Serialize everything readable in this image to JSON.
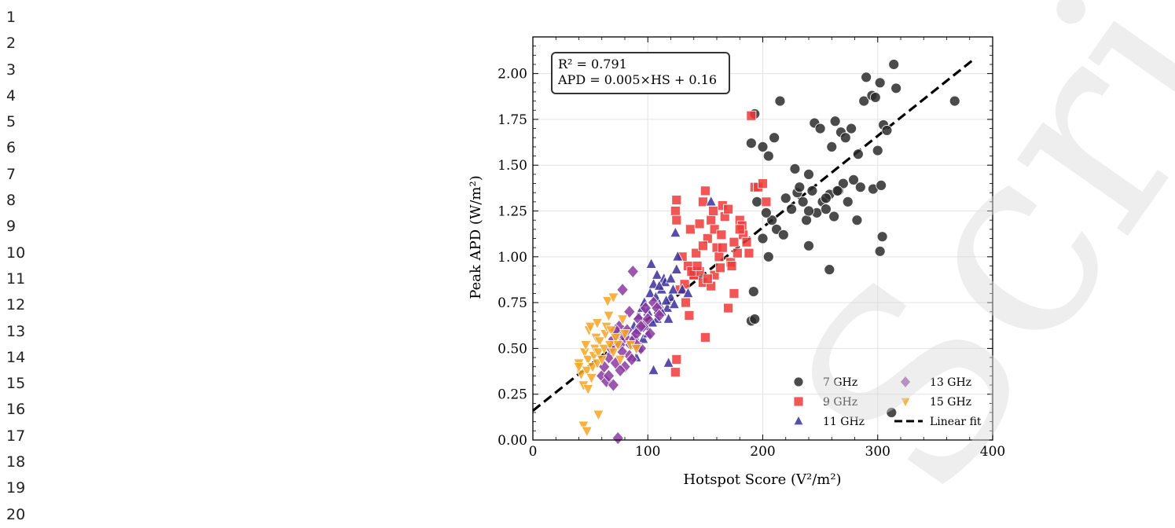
{
  "gutter": {
    "line_numbers": [
      "1",
      "2",
      "3",
      "4",
      "5",
      "6",
      "7",
      "8",
      "9",
      "10",
      "11",
      "12",
      "13",
      "14",
      "15",
      "16",
      "17",
      "18",
      "19",
      "20"
    ]
  },
  "watermark": {
    "text": "Script"
  },
  "chart_data": {
    "type": "scatter",
    "xlabel": "Hotspot Score (V²/m²)",
    "ylabel": "Peak APD (W/m²)",
    "xlim": [
      0,
      400
    ],
    "ylim": [
      0,
      2.2
    ],
    "xticks": [
      0,
      100,
      200,
      300,
      400
    ],
    "yticks": [
      0.0,
      0.25,
      0.5,
      0.75,
      1.0,
      1.25,
      1.5,
      1.75,
      2.0
    ],
    "grid": true,
    "legend_position": "lower-right",
    "annotation": [
      "R² = 0.791",
      "APD = 0.005×HS + 0.16"
    ],
    "fit": {
      "name": "Linear fit",
      "slope": 0.005,
      "intercept": 0.16,
      "x_range": [
        0,
        385
      ],
      "color": "#000000"
    },
    "series": [
      {
        "name": "7 GHz",
        "marker": "circle",
        "color": "#2b2b2b",
        "points": [
          [
            190,
            1.62
          ],
          [
            193,
            1.78
          ],
          [
            200,
            1.6
          ],
          [
            205,
            1.55
          ],
          [
            210,
            1.65
          ],
          [
            215,
            1.85
          ],
          [
            230,
            1.35
          ],
          [
            240,
            1.45
          ],
          [
            245,
            1.73
          ],
          [
            250,
            1.7
          ],
          [
            260,
            1.6
          ],
          [
            263,
            1.74
          ],
          [
            268,
            1.68
          ],
          [
            272,
            1.65
          ],
          [
            277,
            1.7
          ],
          [
            283,
            1.56
          ],
          [
            288,
            1.85
          ],
          [
            290,
            1.98
          ],
          [
            295,
            1.88
          ],
          [
            298,
            1.87
          ],
          [
            302,
            1.95
          ],
          [
            305,
            1.72
          ],
          [
            308,
            1.69
          ],
          [
            314,
            2.05
          ],
          [
            316,
            1.92
          ],
          [
            367,
            1.85
          ],
          [
            200,
            1.1
          ],
          [
            205,
            1.0
          ],
          [
            208,
            1.2
          ],
          [
            212,
            1.15
          ],
          [
            218,
            1.12
          ],
          [
            220,
            1.32
          ],
          [
            225,
            1.26
          ],
          [
            232,
            1.38
          ],
          [
            235,
            1.3
          ],
          [
            238,
            1.2
          ],
          [
            243,
            1.36
          ],
          [
            247,
            1.24
          ],
          [
            252,
            1.3
          ],
          [
            255,
            1.26
          ],
          [
            258,
            1.34
          ],
          [
            262,
            1.22
          ],
          [
            266,
            1.36
          ],
          [
            270,
            1.4
          ],
          [
            274,
            1.3
          ],
          [
            279,
            1.42
          ],
          [
            282,
            1.2
          ],
          [
            285,
            1.38
          ],
          [
            296,
            1.37
          ],
          [
            300,
            1.58
          ],
          [
            303,
            1.39
          ],
          [
            304,
            1.11
          ],
          [
            302,
            1.03
          ],
          [
            240,
            1.06
          ],
          [
            258,
            0.93
          ],
          [
            192,
            0.81
          ],
          [
            190,
            0.65
          ],
          [
            193,
            0.66
          ],
          [
            240,
            1.25
          ],
          [
            228,
            1.48
          ],
          [
            312,
            0.15
          ],
          [
            195,
            1.3
          ],
          [
            203,
            1.24
          ],
          [
            255,
            1.32
          ],
          [
            265,
            1.36
          ]
        ]
      },
      {
        "name": "9 GHz",
        "marker": "square",
        "color": "#f03a3a",
        "points": [
          [
            125,
            1.31
          ],
          [
            124,
            1.25
          ],
          [
            125,
            1.2
          ],
          [
            130,
            1.0
          ],
          [
            135,
            0.95
          ],
          [
            137,
            1.15
          ],
          [
            140,
            0.9
          ],
          [
            142,
            1.02
          ],
          [
            145,
            1.18
          ],
          [
            148,
            1.3
          ],
          [
            150,
            1.36
          ],
          [
            152,
            1.1
          ],
          [
            155,
            1.2
          ],
          [
            157,
            1.25
          ],
          [
            158,
            1.15
          ],
          [
            160,
            1.05
          ],
          [
            162,
            1.0
          ],
          [
            164,
            1.12
          ],
          [
            165,
            1.28
          ],
          [
            167,
            1.22
          ],
          [
            170,
            1.26
          ],
          [
            172,
            0.97
          ],
          [
            173,
            0.95
          ],
          [
            175,
            1.08
          ],
          [
            178,
            1.02
          ],
          [
            180,
            1.2
          ],
          [
            182,
            1.17
          ],
          [
            183,
            1.12
          ],
          [
            186,
            1.08
          ],
          [
            188,
            1.02
          ],
          [
            190,
            1.77
          ],
          [
            193,
            1.38
          ],
          [
            196,
            1.38
          ],
          [
            200,
            1.4
          ],
          [
            203,
            1.3
          ],
          [
            128,
            0.82
          ],
          [
            132,
            0.85
          ],
          [
            133,
            0.75
          ],
          [
            136,
            0.68
          ],
          [
            140,
            0.9
          ],
          [
            145,
            0.92
          ],
          [
            148,
            0.86
          ],
          [
            150,
            0.56
          ],
          [
            155,
            0.84
          ],
          [
            158,
            0.9
          ],
          [
            163,
            0.94
          ],
          [
            170,
            0.72
          ],
          [
            175,
            0.8
          ],
          [
            125,
            0.44
          ],
          [
            124,
            0.37
          ],
          [
            138,
            0.92
          ],
          [
            152,
            0.88
          ],
          [
            143,
            0.95
          ],
          [
            165,
            1.05
          ],
          [
            180,
            1.15
          ],
          [
            148,
            1.06
          ]
        ]
      },
      {
        "name": "11 GHz",
        "marker": "triangle-up",
        "color": "#3a2f9a",
        "points": [
          [
            86,
            0.55
          ],
          [
            88,
            0.62
          ],
          [
            90,
            0.6
          ],
          [
            92,
            0.68
          ],
          [
            95,
            0.72
          ],
          [
            97,
            0.75
          ],
          [
            100,
            0.7
          ],
          [
            102,
            0.8
          ],
          [
            103,
            0.96
          ],
          [
            105,
            0.85
          ],
          [
            107,
            0.78
          ],
          [
            108,
            0.9
          ],
          [
            110,
            0.74
          ],
          [
            112,
            0.82
          ],
          [
            114,
            0.88
          ],
          [
            115,
            0.86
          ],
          [
            117,
            0.72
          ],
          [
            118,
            0.66
          ],
          [
            120,
            0.78
          ],
          [
            122,
            0.82
          ],
          [
            123,
            0.74
          ],
          [
            124,
            1.13
          ],
          [
            125,
            0.93
          ],
          [
            126,
            1.0
          ],
          [
            130,
            0.82
          ],
          [
            135,
            0.8
          ],
          [
            155,
            1.3
          ],
          [
            105,
            0.38
          ],
          [
            118,
            0.42
          ],
          [
            96,
            0.55
          ],
          [
            100,
            0.58
          ],
          [
            108,
            0.66
          ],
          [
            112,
            0.7
          ],
          [
            104,
            0.64
          ],
          [
            93,
            0.5
          ],
          [
            98,
            0.62
          ],
          [
            110,
            0.84
          ],
          [
            116,
            0.76
          ],
          [
            120,
            0.88
          ],
          [
            90,
            0.45
          ]
        ]
      },
      {
        "name": "13 GHz",
        "marker": "diamond",
        "color": "#8b3aa0",
        "points": [
          [
            60,
            0.35
          ],
          [
            62,
            0.4
          ],
          [
            64,
            0.32
          ],
          [
            66,
            0.45
          ],
          [
            68,
            0.5
          ],
          [
            70,
            0.55
          ],
          [
            72,
            0.42
          ],
          [
            74,
            0.58
          ],
          [
            75,
            0.62
          ],
          [
            76,
            0.52
          ],
          [
            78,
            0.48
          ],
          [
            80,
            0.56
          ],
          [
            82,
            0.6
          ],
          [
            84,
            0.7
          ],
          [
            85,
            0.52
          ],
          [
            87,
            0.92
          ],
          [
            88,
            0.55
          ],
          [
            90,
            0.58
          ],
          [
            92,
            0.66
          ],
          [
            94,
            0.5
          ],
          [
            96,
            0.62
          ],
          [
            98,
            0.72
          ],
          [
            100,
            0.66
          ],
          [
            102,
            0.58
          ],
          [
            105,
            0.75
          ],
          [
            108,
            0.72
          ],
          [
            110,
            0.68
          ],
          [
            74,
            0.01
          ],
          [
            78,
            0.82
          ],
          [
            66,
            0.35
          ],
          [
            70,
            0.3
          ],
          [
            80,
            0.4
          ],
          [
            84,
            0.46
          ],
          [
            86,
            0.44
          ],
          [
            90,
            0.52
          ],
          [
            72,
            0.6
          ],
          [
            76,
            0.38
          ],
          [
            94,
            0.62
          ]
        ]
      },
      {
        "name": "15 GHz",
        "marker": "triangle-down",
        "color": "#f5a623",
        "points": [
          [
            40,
            0.42
          ],
          [
            42,
            0.36
          ],
          [
            44,
            0.3
          ],
          [
            45,
            0.48
          ],
          [
            46,
            0.52
          ],
          [
            47,
            0.38
          ],
          [
            48,
            0.44
          ],
          [
            49,
            0.6
          ],
          [
            50,
            0.62
          ],
          [
            51,
            0.34
          ],
          [
            52,
            0.4
          ],
          [
            53,
            0.46
          ],
          [
            54,
            0.5
          ],
          [
            55,
            0.56
          ],
          [
            56,
            0.42
          ],
          [
            57,
            0.48
          ],
          [
            58,
            0.54
          ],
          [
            60,
            0.44
          ],
          [
            62,
            0.5
          ],
          [
            63,
            0.58
          ],
          [
            64,
            0.62
          ],
          [
            65,
            0.76
          ],
          [
            66,
            0.68
          ],
          [
            67,
            0.52
          ],
          [
            68,
            0.6
          ],
          [
            70,
            0.48
          ],
          [
            72,
            0.56
          ],
          [
            74,
            0.52
          ],
          [
            76,
            0.44
          ],
          [
            78,
            0.66
          ],
          [
            80,
            0.58
          ],
          [
            85,
            0.52
          ],
          [
            90,
            0.5
          ],
          [
            44,
            0.08
          ],
          [
            47,
            0.05
          ],
          [
            57,
            0.14
          ],
          [
            40,
            0.4
          ],
          [
            56,
            0.64
          ],
          [
            70,
            0.78
          ],
          [
            48,
            0.28
          ]
        ]
      }
    ]
  }
}
